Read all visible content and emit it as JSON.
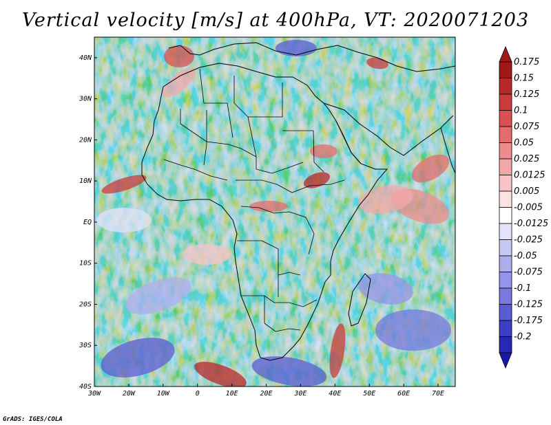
{
  "title": "Vertical velocity [m/s] at 400hPa, VT: 2020071203",
  "credit": "GrADS: IGES/COLA",
  "map": {
    "region": "Africa",
    "lat_labels": [
      "40N",
      "30N",
      "20N",
      "10N",
      "EQ",
      "10S",
      "20S",
      "30S",
      "40S"
    ],
    "lon_labels": [
      "30W",
      "20W",
      "10W",
      "0",
      "10E",
      "20E",
      "30E",
      "40E",
      "50E",
      "60E",
      "70E"
    ],
    "lat_range": [
      -40,
      45
    ],
    "lon_range": [
      -30,
      75
    ]
  },
  "colorbar": {
    "levels": [
      {
        "label": "0.175",
        "color": "#a01818"
      },
      {
        "label": "0.15",
        "color": "#b82828"
      },
      {
        "label": "0.125",
        "color": "#c83c3c"
      },
      {
        "label": "0.1",
        "color": "#d85050"
      },
      {
        "label": "0.075",
        "color": "#e46c6c"
      },
      {
        "label": "0.05",
        "color": "#ec8c8c"
      },
      {
        "label": "0.025",
        "color": "#f2a8a8"
      },
      {
        "label": "0.0125",
        "color": "#f8c4c4"
      },
      {
        "label": "0.005",
        "color": "#fce2e2"
      },
      {
        "label": "-0.005",
        "color": "#ffffff"
      },
      {
        "label": "-0.0125",
        "color": "#e2e2fa"
      },
      {
        "label": "-0.025",
        "color": "#c8c8f4"
      },
      {
        "label": "-0.05",
        "color": "#aeaeee"
      },
      {
        "label": "-0.075",
        "color": "#9494e8"
      },
      {
        "label": "-0.1",
        "color": "#7878de"
      },
      {
        "label": "-0.125",
        "color": "#5c5cd2"
      },
      {
        "label": "-0.175",
        "color": "#3e3ec4"
      },
      {
        "label": "-0.2",
        "color": "#2828b4"
      }
    ],
    "top_arrow_color": "#a01818",
    "bottom_arrow_color": "#1a1aa8"
  }
}
